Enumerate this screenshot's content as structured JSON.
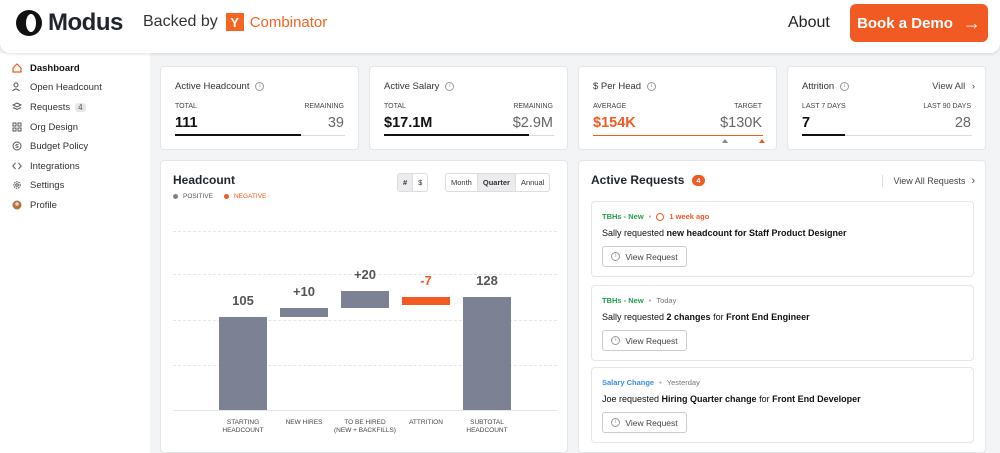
{
  "topbar": {
    "logo_text": "Modus",
    "backed_by": "Backed by",
    "yc_letter": "Y",
    "yc_name": "Combinator",
    "about": "About",
    "demo_button": "Book a Demo",
    "demo_arrow": "→"
  },
  "sidebar": {
    "items": [
      {
        "label": "Dashboard",
        "icon": "home-icon"
      },
      {
        "label": "Open Headcount",
        "icon": "users-icon"
      },
      {
        "label": "Requests",
        "icon": "layers-icon",
        "badge": "4"
      },
      {
        "label": "Org Design",
        "icon": "grid-icon"
      },
      {
        "label": "Budget Policy",
        "icon": "dollar-icon"
      },
      {
        "label": "Integrations",
        "icon": "code-icon"
      },
      {
        "label": "Settings",
        "icon": "gear-icon"
      },
      {
        "label": "Profile",
        "icon": "avatar-icon"
      }
    ]
  },
  "stats": {
    "headcount": {
      "title": "Active Headcount",
      "left_label": "TOTAL",
      "left_value": "111",
      "right_label": "REMAINING",
      "right_value": "39",
      "progress": 0.74
    },
    "salary": {
      "title": "Active Salary",
      "left_label": "TOTAL",
      "left_value": "$17.1M",
      "right_label": "REMAINING",
      "right_value": "$2.9M",
      "progress": 0.85
    },
    "per_head": {
      "title": "$ Per Head",
      "left_label": "AVERAGE",
      "left_value": "$154K",
      "right_label": "TARGET",
      "right_value": "$130K"
    },
    "attrition": {
      "title": "Attrition",
      "view_all": "View All",
      "chevron": "›",
      "left_label": "LAST 7 DAYS",
      "left_value": "7",
      "right_label": "LAST 90 DAYS",
      "right_value": "28",
      "progress": 0.25
    }
  },
  "headcount_chart": {
    "title": "Headcount",
    "legend_positive": "POSITIVE",
    "legend_negative": "NEGATIVE",
    "unit_toggle": [
      "#",
      "$"
    ],
    "period_toggle": [
      "Month",
      "Quarter",
      "Annual"
    ],
    "selected_unit": "#",
    "selected_period": "Quarter"
  },
  "chart_data": {
    "type": "bar",
    "categories": [
      "STARTING HEADCOUNT",
      "NEW HIRES",
      "TO BE HIRED (NEW + BACKFILLS)",
      "ATTRITION",
      "SUBTOTAL HEADCOUNT"
    ],
    "values": [
      105,
      10,
      20,
      -7,
      128
    ],
    "value_labels": [
      "105",
      "+10",
      "+20",
      "-7",
      "128"
    ],
    "x_label_lines": [
      [
        "STARTING",
        "HEADCOUNT"
      ],
      [
        "NEW HIRES"
      ],
      [
        "TO BE HIRED",
        "(NEW + BACKFILLS)"
      ],
      [
        "ATTRITION"
      ],
      [
        "SUBTOTAL",
        "HEADCOUNT"
      ]
    ],
    "waterfall_base": [
      0,
      105,
      115,
      128,
      0
    ],
    "colors": {
      "positive": "#7c8293",
      "negative": "#f15a22"
    },
    "grid": true
  },
  "requests": {
    "title": "Active Requests",
    "count": "4",
    "view_all": "View All Requests",
    "chevron": "›",
    "items": [
      {
        "tag": "TBHs - New",
        "tag_color": "green",
        "time": "1 week ago",
        "time_alert": true,
        "pre": "Sally requested ",
        "bold": "new headcount for Staff Product Designer",
        "mid": "",
        "bold2": "",
        "button": "View Request"
      },
      {
        "tag": "TBHs - New",
        "tag_color": "green",
        "time": "Today",
        "time_alert": false,
        "pre": "Sally requested ",
        "bold": "2 changes",
        "mid": " for ",
        "bold2": "Front End Engineer",
        "button": "View Request"
      },
      {
        "tag": "Salary Change",
        "tag_color": "blue",
        "time": "Yesterday",
        "time_alert": false,
        "pre": "Joe requested ",
        "bold": "Hiring Quarter change",
        "mid": " for ",
        "bold2": "Front End Developer",
        "button": "View Request"
      }
    ]
  }
}
